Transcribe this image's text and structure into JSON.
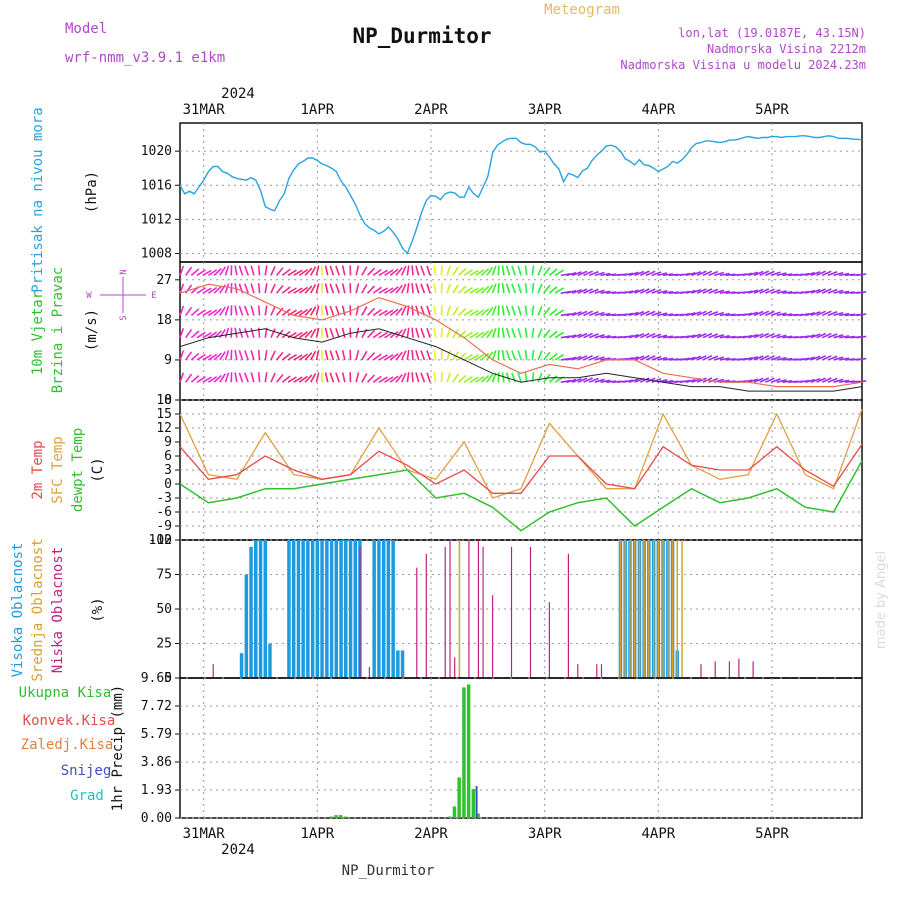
{
  "header": {
    "model_label": "Model",
    "model_name": "wrf-nmm_v3.9.1 e1km",
    "title": "NP_Durmitor",
    "product": "Meteogram",
    "lonlat": "lon,lat (19.0187E, 43.15N)",
    "elevation": "Nadmorska Visina 2212m",
    "model_elevation": "Nadmorska Visina u modelu 2024.23m",
    "footer": "NP_Durmitor",
    "watermark": "made by Angel"
  },
  "colors": {
    "pressure": "#2aa3e0",
    "temp_2m": "#e84a4a",
    "temp_sfc": "#e0a040",
    "dewpoint": "#30c030",
    "cloud_high": "#1e9be0",
    "cloud_mid": "#d8a030",
    "cloud_low": "#c02080",
    "precip_total": "#30c030",
    "snow": "#4050c0",
    "model_label": "#b048c8",
    "product_label": "#e8b860"
  },
  "time_axis": {
    "top_year": "2024",
    "bottom_year": "2024",
    "labels": [
      "31MAR",
      "1APR",
      "2APR",
      "3APR",
      "4APR",
      "5APR"
    ],
    "hours_start": 0,
    "hours_end": 144
  },
  "chart_data": [
    {
      "type": "line",
      "panel": "pressure",
      "ylabel_main": "Pritisak na nivou mora",
      "ylabel_unit": "(hPa)",
      "ylim": [
        1007,
        1023.3
      ],
      "yticks": [
        1008,
        1012,
        1016,
        1020
      ],
      "grid": true,
      "series": [
        {
          "x": [
            0,
            1,
            2,
            3,
            4,
            5,
            6,
            7,
            8,
            9,
            10,
            11,
            12,
            13,
            14,
            15,
            16,
            17,
            18,
            19,
            20,
            21,
            22,
            23,
            24,
            25,
            26,
            27,
            28,
            29,
            30,
            31,
            32,
            33,
            34,
            35,
            36,
            37,
            38,
            39,
            40,
            41,
            42,
            43,
            44,
            45,
            46,
            47,
            48,
            49,
            50,
            51,
            52,
            53,
            54,
            55,
            56,
            57,
            58,
            59,
            60,
            61,
            62,
            63,
            64,
            65,
            66,
            67,
            68,
            69,
            70,
            71,
            72,
            73,
            74,
            75,
            76,
            77,
            78,
            79,
            80,
            81,
            82,
            83,
            84,
            85,
            86,
            87,
            88,
            89,
            90,
            91,
            92,
            93,
            94,
            95,
            96,
            97,
            98,
            99,
            100,
            101,
            102,
            103,
            104,
            105,
            106,
            107,
            108,
            109,
            110,
            111,
            112,
            113,
            114,
            115,
            116,
            117,
            118,
            119,
            120,
            121,
            122,
            123,
            124,
            125,
            126,
            127,
            128,
            129,
            130,
            131,
            132,
            133,
            134,
            135,
            136,
            137,
            138,
            139,
            140,
            141,
            142,
            143,
            144
          ],
          "values": [
            1016.0,
            1015.0,
            1015.3,
            1015.0,
            1015.8,
            1016.6,
            1017.6,
            1018.2,
            1018.2,
            1017.6,
            1017.4,
            1017.0,
            1016.8,
            1016.7,
            1016.6,
            1016.9,
            1016.6,
            1015.4,
            1013.5,
            1013.2,
            1013.0,
            1014.2,
            1015.0,
            1016.8,
            1017.8,
            1018.5,
            1018.8,
            1019.2,
            1019.2,
            1018.9,
            1018.5,
            1018.3,
            1018.0,
            1017.6,
            1016.5,
            1015.8,
            1014.8,
            1013.8,
            1012.5,
            1011.5,
            1011.0,
            1010.7,
            1010.3,
            1010.6,
            1011.1,
            1010.5,
            1009.7,
            1008.6,
            1008.0,
            1009.4,
            1011.0,
            1012.8,
            1014.2,
            1014.8,
            1014.7,
            1014.3,
            1015.0,
            1015.2,
            1015.1,
            1014.6,
            1014.6,
            1015.8,
            1015.0,
            1014.6,
            1015.8,
            1017.0,
            1019.8,
            1020.7,
            1021.1,
            1021.4,
            1021.5,
            1021.5,
            1021.0,
            1020.8,
            1020.8,
            1020.5,
            1019.9,
            1020.0,
            1019.3,
            1018.5,
            1017.9,
            1016.4,
            1017.4,
            1017.2,
            1016.9,
            1017.7,
            1018.0,
            1018.9,
            1019.5,
            1020.0,
            1020.6,
            1020.7,
            1020.5,
            1020.0,
            1019.1,
            1018.8,
            1018.4,
            1019.0,
            1018.4,
            1018.3,
            1018.0,
            1017.6,
            1017.9,
            1018.2,
            1018.8,
            1018.6,
            1019.0,
            1019.6,
            1020.4,
            1020.9,
            1021.0,
            1021.2,
            1021.2,
            1021.1,
            1021.0,
            1021.1,
            1021.3,
            1021.3,
            1021.4,
            1021.6,
            1021.7,
            1021.6,
            1021.5,
            1021.6,
            1021.6,
            1021.7,
            1021.7,
            1021.6,
            1021.7,
            1021.7,
            1021.7,
            1021.8,
            1021.8,
            1021.7,
            1021.6,
            1021.6,
            1021.7,
            1021.8,
            1021.7,
            1021.5,
            1021.5,
            1021.5,
            1021.4,
            1021.4,
            1021.3
          ]
        }
      ]
    },
    {
      "type": "line",
      "panel": "wind",
      "ylabel_main": "10m Vjetar",
      "ylabel_sub": "Brzina i Pravac",
      "ylabel_unit": "(m/s)",
      "compass": {
        "north": "N",
        "south": "S",
        "east": "E",
        "west": "W"
      },
      "ylim": [
        0,
        31
      ],
      "yticks": [
        0,
        9,
        18,
        27
      ],
      "grid": true,
      "series": [
        {
          "name": "",
          "x": [
            0,
            6,
            12,
            18,
            24,
            30,
            36,
            42,
            48,
            54,
            60,
            66,
            72,
            78,
            84,
            90,
            96,
            102,
            108,
            114,
            120,
            126,
            132,
            138,
            144
          ],
          "values": [
            12,
            14,
            15,
            16,
            14,
            13,
            15,
            16,
            14,
            12,
            9,
            6,
            4,
            5,
            5,
            6,
            5,
            4,
            3,
            3,
            2,
            2,
            2,
            2,
            3
          ]
        },
        {
          "name": "",
          "x": [
            0,
            6,
            12,
            18,
            24,
            30,
            36,
            42,
            48,
            54,
            60,
            66,
            72,
            78,
            84,
            90,
            96,
            102,
            108,
            114,
            120,
            126,
            132,
            138,
            144
          ],
          "values": [
            24,
            26,
            25,
            22,
            19,
            18,
            20,
            23,
            21,
            18,
            14,
            9,
            6,
            8,
            7,
            9,
            9,
            6,
            5,
            4,
            4,
            3,
            3,
            3,
            4
          ]
        }
      ]
    },
    {
      "type": "line",
      "panel": "temperature",
      "ylabel_lines": [
        "2m Temp",
        "SFC Temp",
        "dewpt Temp"
      ],
      "ylabel_unit": "(C)",
      "ylim": [
        -12,
        18
      ],
      "yticks": [
        -12,
        -9,
        -6,
        -3,
        0,
        3,
        6,
        9,
        12,
        15,
        18
      ],
      "grid": true,
      "series": [
        {
          "name": "2m Temp",
          "x": [
            0,
            6,
            12,
            18,
            24,
            30,
            36,
            42,
            48,
            54,
            60,
            66,
            72,
            78,
            84,
            90,
            96,
            102,
            108,
            114,
            120,
            126,
            132,
            138,
            144
          ],
          "values": [
            8,
            1,
            2,
            6,
            3,
            1,
            2,
            7,
            4,
            0,
            3,
            -2,
            -2,
            6,
            6,
            0,
            -1,
            8,
            4,
            3,
            3,
            8,
            3,
            -0.5,
            8.5
          ]
        },
        {
          "name": "SFC Temp",
          "x": [
            0,
            6,
            12,
            18,
            24,
            30,
            36,
            42,
            48,
            54,
            60,
            66,
            72,
            78,
            84,
            90,
            96,
            102,
            108,
            114,
            120,
            126,
            132,
            138,
            144
          ],
          "values": [
            15,
            2,
            1,
            11,
            2,
            1,
            2,
            12,
            3,
            1,
            9,
            -3,
            -1,
            13,
            6,
            -1,
            -1,
            15,
            4,
            1,
            2,
            15,
            2,
            -1,
            16
          ]
        },
        {
          "name": "dewpt Temp",
          "x": [
            0,
            6,
            12,
            18,
            24,
            30,
            36,
            42,
            48,
            54,
            60,
            66,
            72,
            78,
            84,
            90,
            96,
            102,
            108,
            114,
            120,
            126,
            132,
            138,
            144
          ],
          "values": [
            0,
            -4,
            -3,
            -1,
            -1,
            0,
            1,
            2,
            3,
            -3,
            -2,
            -5,
            -10,
            -6,
            -4,
            -3,
            -9,
            -5,
            -1,
            -4,
            -3,
            -1,
            -5,
            -6,
            5
          ]
        }
      ]
    },
    {
      "type": "bar",
      "panel": "clouds",
      "ylabel_lines": [
        "Visoka Oblacnost",
        "Srednja Oblacnost",
        "Niska Oblacnost"
      ],
      "ylabel_unit": "(%)",
      "ylim": [
        0,
        100
      ],
      "yticks": [
        0,
        25,
        50,
        75,
        100
      ],
      "grid": true,
      "series": [
        {
          "name": "Visoka Oblacnost",
          "x": [
            13,
            14,
            15,
            16,
            17,
            18,
            19,
            23,
            24,
            25,
            26,
            27,
            28,
            29,
            30,
            31,
            32,
            33,
            34,
            35,
            36,
            37,
            38,
            41,
            42,
            43,
            44,
            45,
            46,
            47,
            93,
            94,
            95,
            96,
            97,
            98,
            99,
            100,
            101,
            102,
            103,
            104,
            105
          ],
          "values": [
            18,
            75,
            95,
            100,
            100,
            100,
            25,
            100,
            100,
            100,
            100,
            100,
            100,
            100,
            100,
            100,
            100,
            100,
            100,
            100,
            100,
            100,
            100,
            100,
            100,
            100,
            100,
            100,
            20,
            20,
            100,
            100,
            100,
            100,
            100,
            100,
            100,
            100,
            100,
            100,
            100,
            100,
            20
          ]
        },
        {
          "name": "Srednja Oblacnost",
          "x": [
            59,
            93,
            94,
            95,
            96,
            97,
            98,
            99,
            100,
            101,
            102,
            103,
            104,
            105,
            106
          ],
          "values": [
            100,
            100,
            100,
            100,
            100,
            100,
            100,
            100,
            100,
            100,
            100,
            100,
            100,
            100,
            100
          ]
        },
        {
          "name": "Niska Oblacnost",
          "x": [
            7,
            38,
            40,
            50,
            52,
            56,
            57,
            58,
            61,
            63,
            64,
            66,
            70,
            74,
            78,
            82,
            84,
            88,
            89,
            110,
            113,
            116,
            118,
            121
          ],
          "values": [
            10,
            95,
            8,
            80,
            90,
            95,
            100,
            15,
            100,
            100,
            95,
            60,
            95,
            95,
            55,
            90,
            10,
            10,
            10,
            10,
            12,
            12,
            14,
            12
          ]
        }
      ]
    },
    {
      "type": "bar",
      "panel": "precip",
      "ylabel_lines": [
        "Ukupna Kisa",
        "Konvek.Kisa",
        "Zaledj.Kisa",
        "Snijeg",
        "Grad"
      ],
      "ylabel_unit": "1hr Precip (mm)",
      "ylim": [
        0,
        9.65
      ],
      "yticks": [
        0,
        1.93,
        3.86,
        5.79,
        7.72,
        9.65
      ],
      "grid": true,
      "series": [
        {
          "name": "Ukupna Kisa",
          "x": [
            32,
            33,
            34,
            35,
            57,
            58,
            59,
            60,
            61,
            62,
            63
          ],
          "values": [
            0.1,
            0.2,
            0.2,
            0.1,
            0.1,
            0.8,
            2.8,
            9.0,
            9.2,
            2.0,
            0.3
          ]
        },
        {
          "name": "Snijeg",
          "x": [
            62
          ],
          "values": [
            2.2
          ]
        }
      ]
    }
  ]
}
